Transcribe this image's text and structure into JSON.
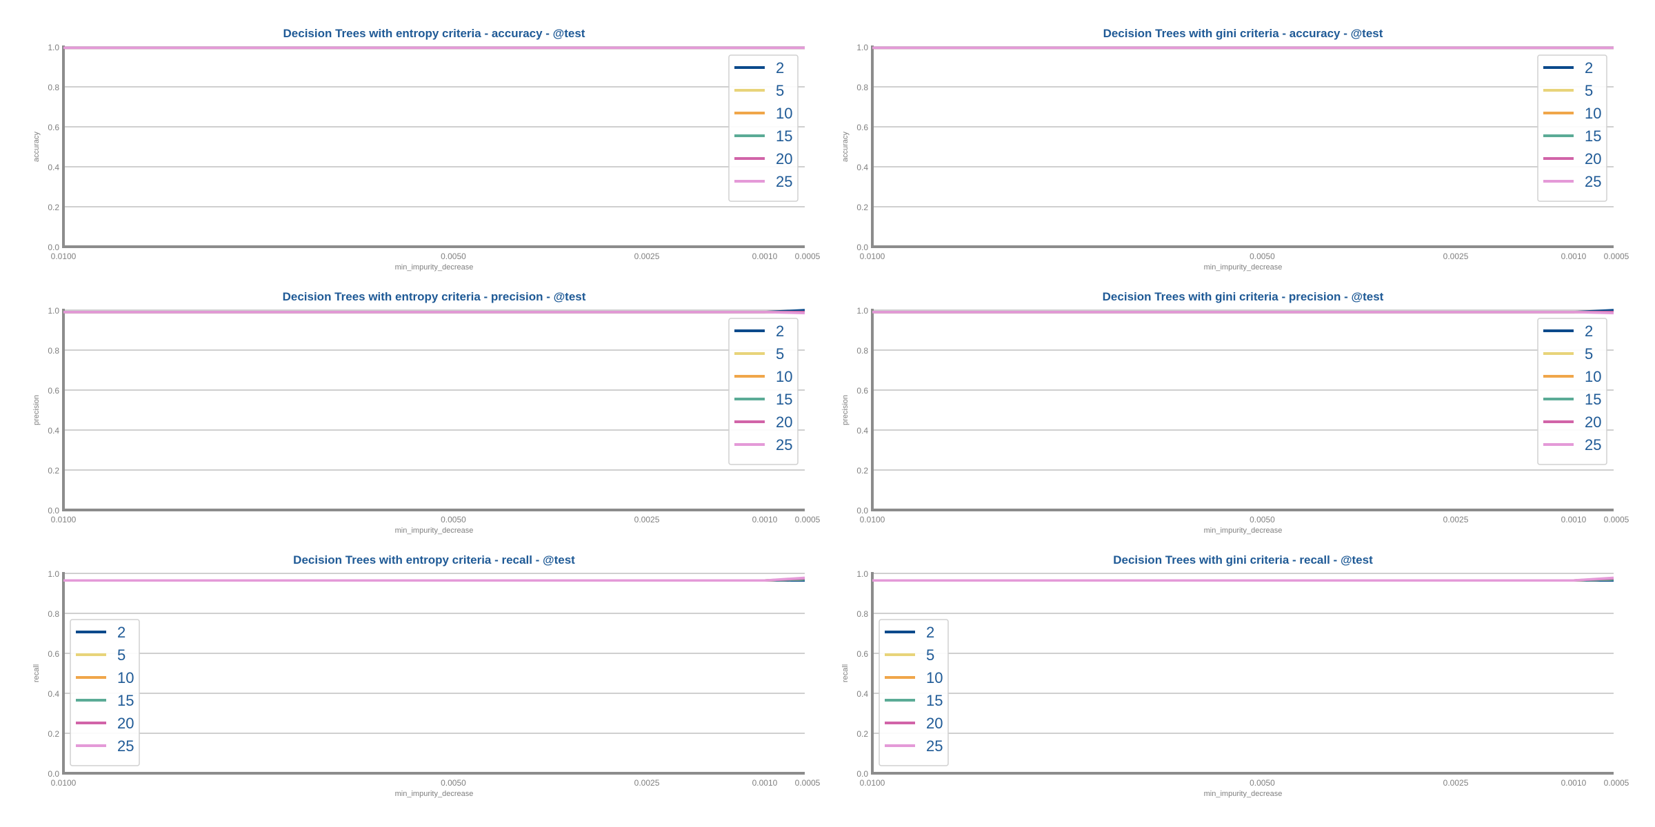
{
  "chart_data": [
    {
      "type": "line",
      "title": "Decision Trees with entropy criteria - accuracy - @test",
      "xlabel": "min_impurity_decrease",
      "ylabel": "accuracy",
      "legend_position": "top-right",
      "categories": [
        "0.0100",
        "0.0050",
        "0.0025",
        "0.0010",
        "0.0005"
      ],
      "ylim": [
        0,
        1
      ],
      "yticks": [
        "0.0",
        "0.2",
        "0.4",
        "0.6",
        "0.8",
        "1.0"
      ],
      "grid": true,
      "series": [
        {
          "name": "2",
          "color": "#0b4a8b",
          "values": [
            0.995,
            0.995,
            0.995,
            0.995,
            0.995
          ]
        },
        {
          "name": "5",
          "color": "#e8d47a",
          "values": [
            0.995,
            0.995,
            0.995,
            0.995,
            0.995
          ]
        },
        {
          "name": "10",
          "color": "#f0a64a",
          "values": [
            0.995,
            0.995,
            0.995,
            0.995,
            0.995
          ]
        },
        {
          "name": "15",
          "color": "#5bab96",
          "values": [
            0.995,
            0.995,
            0.995,
            0.995,
            0.995
          ]
        },
        {
          "name": "20",
          "color": "#d164a8",
          "values": [
            0.995,
            0.995,
            0.995,
            0.995,
            0.995
          ]
        },
        {
          "name": "25",
          "color": "#e49ad8",
          "values": [
            0.995,
            0.995,
            0.995,
            0.995,
            0.995
          ]
        }
      ]
    },
    {
      "type": "line",
      "title": "Decision Trees with gini criteria - accuracy - @test",
      "xlabel": "min_impurity_decrease",
      "ylabel": "accuracy",
      "legend_position": "top-right",
      "categories": [
        "0.0100",
        "0.0050",
        "0.0025",
        "0.0010",
        "0.0005"
      ],
      "ylim": [
        0,
        1
      ],
      "yticks": [
        "0.0",
        "0.2",
        "0.4",
        "0.6",
        "0.8",
        "1.0"
      ],
      "grid": true,
      "series": [
        {
          "name": "2",
          "color": "#0b4a8b",
          "values": [
            0.995,
            0.995,
            0.995,
            0.995,
            0.995
          ]
        },
        {
          "name": "5",
          "color": "#e8d47a",
          "values": [
            0.995,
            0.995,
            0.995,
            0.995,
            0.995
          ]
        },
        {
          "name": "10",
          "color": "#f0a64a",
          "values": [
            0.995,
            0.995,
            0.995,
            0.995,
            0.995
          ]
        },
        {
          "name": "15",
          "color": "#5bab96",
          "values": [
            0.995,
            0.995,
            0.995,
            0.995,
            0.995
          ]
        },
        {
          "name": "20",
          "color": "#d164a8",
          "values": [
            0.995,
            0.995,
            0.995,
            0.995,
            0.995
          ]
        },
        {
          "name": "25",
          "color": "#e49ad8",
          "values": [
            0.995,
            0.995,
            0.995,
            0.995,
            0.995
          ]
        }
      ]
    },
    {
      "type": "line",
      "title": "Decision Trees with entropy criteria - precision - @test",
      "xlabel": "min_impurity_decrease",
      "ylabel": "precision",
      "legend_position": "top-right",
      "categories": [
        "0.0100",
        "0.0050",
        "0.0025",
        "0.0010",
        "0.0005"
      ],
      "ylim": [
        0,
        1
      ],
      "yticks": [
        "0.0",
        "0.2",
        "0.4",
        "0.6",
        "0.8",
        "1.0"
      ],
      "grid": true,
      "series": [
        {
          "name": "2",
          "color": "#0b4a8b",
          "values": [
            0.99,
            0.99,
            0.99,
            0.99,
            1.0
          ]
        },
        {
          "name": "5",
          "color": "#e8d47a",
          "values": [
            0.99,
            0.99,
            0.99,
            0.99,
            0.99
          ]
        },
        {
          "name": "10",
          "color": "#f0a64a",
          "values": [
            0.99,
            0.99,
            0.99,
            0.99,
            0.99
          ]
        },
        {
          "name": "15",
          "color": "#5bab96",
          "values": [
            0.99,
            0.99,
            0.99,
            0.99,
            0.99
          ]
        },
        {
          "name": "20",
          "color": "#d164a8",
          "values": [
            0.99,
            0.99,
            0.99,
            0.99,
            0.99
          ]
        },
        {
          "name": "25",
          "color": "#e49ad8",
          "values": [
            0.99,
            0.99,
            0.99,
            0.99,
            0.985
          ]
        }
      ]
    },
    {
      "type": "line",
      "title": "Decision Trees with gini criteria - precision - @test",
      "xlabel": "min_impurity_decrease",
      "ylabel": "precision",
      "legend_position": "top-right",
      "categories": [
        "0.0100",
        "0.0050",
        "0.0025",
        "0.0010",
        "0.0005"
      ],
      "ylim": [
        0,
        1
      ],
      "yticks": [
        "0.0",
        "0.2",
        "0.4",
        "0.6",
        "0.8",
        "1.0"
      ],
      "grid": true,
      "series": [
        {
          "name": "2",
          "color": "#0b4a8b",
          "values": [
            0.99,
            0.99,
            0.99,
            0.99,
            1.0
          ]
        },
        {
          "name": "5",
          "color": "#e8d47a",
          "values": [
            0.99,
            0.99,
            0.99,
            0.99,
            0.99
          ]
        },
        {
          "name": "10",
          "color": "#f0a64a",
          "values": [
            0.99,
            0.99,
            0.99,
            0.99,
            0.99
          ]
        },
        {
          "name": "15",
          "color": "#5bab96",
          "values": [
            0.99,
            0.99,
            0.99,
            0.99,
            0.99
          ]
        },
        {
          "name": "20",
          "color": "#d164a8",
          "values": [
            0.99,
            0.99,
            0.99,
            0.99,
            0.99
          ]
        },
        {
          "name": "25",
          "color": "#e49ad8",
          "values": [
            0.99,
            0.99,
            0.99,
            0.99,
            0.985
          ]
        }
      ]
    },
    {
      "type": "line",
      "title": "Decision Trees with entropy criteria - recall - @test",
      "xlabel": "min_impurity_decrease",
      "ylabel": "recall",
      "legend_position": "center-left",
      "categories": [
        "0.0100",
        "0.0050",
        "0.0025",
        "0.0010",
        "0.0005"
      ],
      "ylim": [
        0,
        1
      ],
      "yticks": [
        "0.0",
        "0.2",
        "0.4",
        "0.6",
        "0.8",
        "1.0"
      ],
      "grid": true,
      "series": [
        {
          "name": "2",
          "color": "#0b4a8b",
          "values": [
            0.965,
            0.965,
            0.965,
            0.965,
            0.965
          ]
        },
        {
          "name": "5",
          "color": "#e8d47a",
          "values": [
            0.965,
            0.965,
            0.965,
            0.965,
            0.97
          ]
        },
        {
          "name": "10",
          "color": "#f0a64a",
          "values": [
            0.965,
            0.965,
            0.965,
            0.965,
            0.97
          ]
        },
        {
          "name": "15",
          "color": "#5bab96",
          "values": [
            0.965,
            0.965,
            0.965,
            0.965,
            0.97
          ]
        },
        {
          "name": "20",
          "color": "#d164a8",
          "values": [
            0.965,
            0.965,
            0.965,
            0.965,
            0.975
          ]
        },
        {
          "name": "25",
          "color": "#e49ad8",
          "values": [
            0.965,
            0.965,
            0.965,
            0.965,
            0.978
          ]
        }
      ]
    },
    {
      "type": "line",
      "title": "Decision Trees with gini criteria - recall - @test",
      "xlabel": "min_impurity_decrease",
      "ylabel": "recall",
      "legend_position": "center-left",
      "categories": [
        "0.0100",
        "0.0050",
        "0.0025",
        "0.0010",
        "0.0005"
      ],
      "ylim": [
        0,
        1
      ],
      "yticks": [
        "0.0",
        "0.2",
        "0.4",
        "0.6",
        "0.8",
        "1.0"
      ],
      "grid": true,
      "series": [
        {
          "name": "2",
          "color": "#0b4a8b",
          "values": [
            0.965,
            0.965,
            0.965,
            0.965,
            0.965
          ]
        },
        {
          "name": "5",
          "color": "#e8d47a",
          "values": [
            0.965,
            0.965,
            0.965,
            0.965,
            0.97
          ]
        },
        {
          "name": "10",
          "color": "#f0a64a",
          "values": [
            0.965,
            0.965,
            0.965,
            0.965,
            0.97
          ]
        },
        {
          "name": "15",
          "color": "#5bab96",
          "values": [
            0.965,
            0.965,
            0.965,
            0.965,
            0.97
          ]
        },
        {
          "name": "20",
          "color": "#d164a8",
          "values": [
            0.965,
            0.965,
            0.965,
            0.965,
            0.975
          ]
        },
        {
          "name": "25",
          "color": "#e49ad8",
          "values": [
            0.965,
            0.965,
            0.965,
            0.965,
            0.978
          ]
        }
      ]
    }
  ]
}
